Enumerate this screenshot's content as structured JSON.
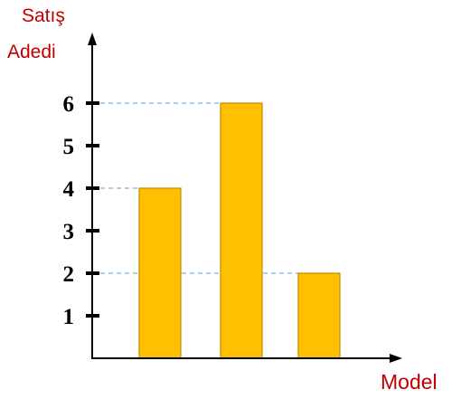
{
  "chart_data": {
    "type": "bar",
    "ylabel": [
      "Satış",
      "Adedi"
    ],
    "xlabel": "Model",
    "categories": [
      "",
      "",
      ""
    ],
    "values": [
      4,
      6,
      2
    ],
    "yticks": [
      1,
      2,
      3,
      4,
      5,
      6
    ],
    "ylim": [
      0,
      6.6
    ],
    "guides": [
      6,
      4,
      2
    ],
    "grid": false,
    "legend": "none",
    "colors": {
      "bar_fill": "#ffc000",
      "bar_stroke": "#c08a00",
      "axis": "#000000",
      "guide": "#5b9bd5",
      "label": "#c00000"
    }
  }
}
